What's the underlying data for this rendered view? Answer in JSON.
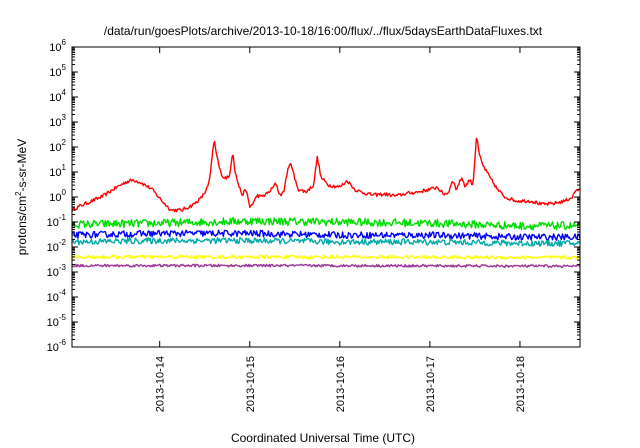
{
  "chart_data": {
    "type": "line",
    "title": "/data/run/goesPlots/archive/2013-10-18/16:00/flux/../flux/5daysEarthDataFluxes.txt",
    "xlabel": "Coordinated Universal Time (UTC)",
    "ylabel_parts": [
      "protons/cm",
      "2",
      "-s-sr-MeV"
    ],
    "x_scale": "time",
    "x_range": [
      "2013-10-13 00:38",
      "2013-10-18 16:00"
    ],
    "x_ticks": [
      "2013-10-14",
      "2013-10-15",
      "2013-10-16",
      "2013-10-17",
      "2013-10-18"
    ],
    "y_scale": "log",
    "ylim": [
      1e-06,
      1000000.0
    ],
    "y_ticks": [
      {
        "base": "10",
        "exp": "-6",
        "value": 1e-06
      },
      {
        "base": "10",
        "exp": "-5",
        "value": 1e-05
      },
      {
        "base": "10",
        "exp": "-4",
        "value": 0.0001
      },
      {
        "base": "10",
        "exp": "-3",
        "value": 0.001
      },
      {
        "base": "10",
        "exp": "-2",
        "value": 0.01
      },
      {
        "base": "10",
        "exp": "-1",
        "value": 0.1
      },
      {
        "base": "10",
        "exp": "0",
        "value": 1
      },
      {
        "base": "10",
        "exp": "1",
        "value": 10
      },
      {
        "base": "10",
        "exp": "2",
        "value": 100
      },
      {
        "base": "10",
        "exp": "3",
        "value": 1000
      },
      {
        "base": "10",
        "exp": "4",
        "value": 10000
      },
      {
        "base": "10",
        "exp": "5",
        "value": 100000
      },
      {
        "base": "10",
        "exp": "6",
        "value": 1000000
      }
    ],
    "grid": false,
    "legend": "none",
    "series": [
      {
        "color": "#ff0000",
        "noise": 0.07,
        "points": [
          [
            "2013-10-13 00:38",
            0.3
          ],
          [
            "2013-10-13 03:00",
            0.45
          ],
          [
            "2013-10-13 06:00",
            0.7
          ],
          [
            "2013-10-13 09:00",
            1.1
          ],
          [
            "2013-10-13 12:00",
            2.2
          ],
          [
            "2013-10-13 15:00",
            4.0
          ],
          [
            "2013-10-13 17:00",
            4.8
          ],
          [
            "2013-10-13 19:00",
            3.8
          ],
          [
            "2013-10-13 22:00",
            2.0
          ],
          [
            "2013-10-14 01:00",
            0.6
          ],
          [
            "2013-10-14 03:00",
            0.3
          ],
          [
            "2013-10-14 06:00",
            0.3
          ],
          [
            "2013-10-14 09:00",
            0.5
          ],
          [
            "2013-10-14 11:00",
            0.9
          ],
          [
            "2013-10-14 12:00",
            1.5
          ],
          [
            "2013-10-14 13:00",
            3.0
          ],
          [
            "2013-10-14 13:30",
            8.0
          ],
          [
            "2013-10-14 14:00",
            40
          ],
          [
            "2013-10-14 14:30",
            220
          ],
          [
            "2013-10-14 15:00",
            60
          ],
          [
            "2013-10-14 15:30",
            30
          ],
          [
            "2013-10-14 16:00",
            12
          ],
          [
            "2013-10-14 17:00",
            6
          ],
          [
            "2013-10-14 18:30",
            6
          ],
          [
            "2013-10-14 19:30",
            70
          ],
          [
            "2013-10-14 20:00",
            12
          ],
          [
            "2013-10-14 21:00",
            3
          ],
          [
            "2013-10-14 22:00",
            1.2
          ],
          [
            "2013-10-14 23:00",
            2.0
          ],
          [
            "2013-10-15 00:00",
            0.4
          ],
          [
            "2013-10-15 01:00",
            0.6
          ],
          [
            "2013-10-15 02:00",
            1.2
          ],
          [
            "2013-10-15 03:00",
            1.0
          ],
          [
            "2013-10-15 05:00",
            1.5
          ],
          [
            "2013-10-15 06:00",
            2.2
          ],
          [
            "2013-10-15 07:00",
            3.5
          ],
          [
            "2013-10-15 08:00",
            1.2
          ],
          [
            "2013-10-15 09:00",
            1.5
          ],
          [
            "2013-10-15 10:00",
            10
          ],
          [
            "2013-10-15 11:00",
            25
          ],
          [
            "2013-10-15 12:00",
            5.0
          ],
          [
            "2013-10-15 13:00",
            2.0
          ],
          [
            "2013-10-15 15:00",
            1.6
          ],
          [
            "2013-10-15 17:00",
            3.0
          ],
          [
            "2013-10-15 18:00",
            40
          ],
          [
            "2013-10-15 19:00",
            6.0
          ],
          [
            "2013-10-15 21:00",
            3.0
          ],
          [
            "2013-10-16 00:00",
            2.5
          ],
          [
            "2013-10-16 02:00",
            4.5
          ],
          [
            "2013-10-16 04:00",
            2.0
          ],
          [
            "2013-10-16 06:00",
            1.5
          ],
          [
            "2013-10-16 09:00",
            1.2
          ],
          [
            "2013-10-16 12:00",
            1.3
          ],
          [
            "2013-10-16 15:00",
            1.1
          ],
          [
            "2013-10-16 18:00",
            1.4
          ],
          [
            "2013-10-16 21:00",
            1.6
          ],
          [
            "2013-10-17 00:00",
            2.0
          ],
          [
            "2013-10-17 02:00",
            2.5
          ],
          [
            "2013-10-17 03:30",
            1.3
          ],
          [
            "2013-10-17 05:00",
            1.5
          ],
          [
            "2013-10-17 06:00",
            5.0
          ],
          [
            "2013-10-17 07:00",
            2.0
          ],
          [
            "2013-10-17 08:30",
            6.0
          ],
          [
            "2013-10-17 09:30",
            2.5
          ],
          [
            "2013-10-17 10:30",
            5.0
          ],
          [
            "2013-10-17 11:30",
            3.0
          ],
          [
            "2013-10-17 12:00",
            40
          ],
          [
            "2013-10-17 12:30",
            350
          ],
          [
            "2013-10-17 13:00",
            60
          ],
          [
            "2013-10-17 14:00",
            20
          ],
          [
            "2013-10-17 16:00",
            6.0
          ],
          [
            "2013-10-17 18:00",
            2.0
          ],
          [
            "2013-10-17 20:00",
            1.0
          ],
          [
            "2013-10-17 23:00",
            0.7
          ],
          [
            "2013-10-18 03:00",
            0.7
          ],
          [
            "2013-10-18 06:00",
            0.5
          ],
          [
            "2013-10-18 09:00",
            0.55
          ],
          [
            "2013-10-18 12:00",
            0.7
          ],
          [
            "2013-10-18 14:00",
            1.0
          ],
          [
            "2013-10-18 15:00",
            2.0
          ],
          [
            "2013-10-18 16:00",
            1.8
          ]
        ]
      },
      {
        "color": "#00dd00",
        "noise": 0.16,
        "points": [
          [
            "2013-10-13 00:38",
            0.08
          ],
          [
            "2013-10-14 00:00",
            0.09
          ],
          [
            "2013-10-15 00:00",
            0.11
          ],
          [
            "2013-10-16 00:00",
            0.1
          ],
          [
            "2013-10-17 00:00",
            0.09
          ],
          [
            "2013-10-18 00:00",
            0.07
          ],
          [
            "2013-10-18 16:00",
            0.07
          ]
        ]
      },
      {
        "color": "#0000ff",
        "noise": 0.13,
        "points": [
          [
            "2013-10-13 00:38",
            0.03
          ],
          [
            "2013-10-14 00:00",
            0.035
          ],
          [
            "2013-10-15 00:00",
            0.035
          ],
          [
            "2013-10-16 00:00",
            0.03
          ],
          [
            "2013-10-17 00:00",
            0.03
          ],
          [
            "2013-10-18 00:00",
            0.025
          ],
          [
            "2013-10-18 16:00",
            0.025
          ]
        ]
      },
      {
        "color": "#00aaaa",
        "noise": 0.12,
        "points": [
          [
            "2013-10-13 00:38",
            0.016
          ],
          [
            "2013-10-14 00:00",
            0.018
          ],
          [
            "2013-10-15 00:00",
            0.018
          ],
          [
            "2013-10-16 00:00",
            0.016
          ],
          [
            "2013-10-17 00:00",
            0.016
          ],
          [
            "2013-10-18 00:00",
            0.014
          ],
          [
            "2013-10-18 16:00",
            0.014
          ]
        ]
      },
      {
        "color": "#ffff00",
        "noise": 0.07,
        "points": [
          [
            "2013-10-13 00:38",
            0.004
          ],
          [
            "2013-10-16 00:00",
            0.004
          ],
          [
            "2013-10-18 16:00",
            0.0038
          ]
        ]
      },
      {
        "color": "#993399",
        "noise": 0.05,
        "points": [
          [
            "2013-10-13 00:38",
            0.0018
          ],
          [
            "2013-10-16 00:00",
            0.0018
          ],
          [
            "2013-10-18 16:00",
            0.0017
          ]
        ]
      }
    ]
  }
}
